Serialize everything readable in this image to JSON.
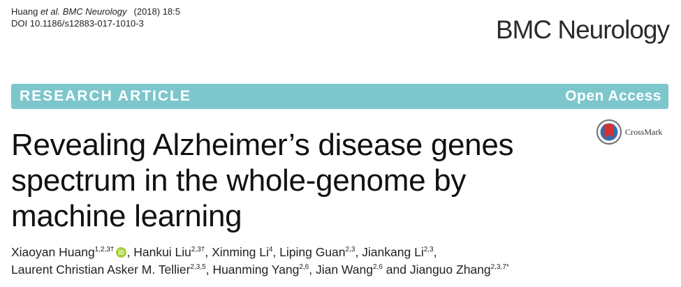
{
  "citation": {
    "author": "Huang",
    "et_al": "et al.",
    "journal": "BMC Neurology",
    "year": "(2018) 18:5",
    "doi": "DOI 10.1186/s12883-017-1010-3"
  },
  "journal_name": "BMC Neurology",
  "banner": {
    "type": "RESEARCH ARTICLE",
    "access": "Open Access"
  },
  "crossmark": {
    "label": "CrossMark"
  },
  "title_lines": [
    "Revealing Alzheimer’s disease genes",
    "spectrum in the whole-genome by",
    "machine learning"
  ],
  "authors": [
    {
      "name": "Xiaoyan Huang",
      "sup": "1,2,3†",
      "orcid": true,
      "sep": ", "
    },
    {
      "name": "Hankui Liu",
      "sup": "2,3†",
      "sep": ", "
    },
    {
      "name": "Xinming Li",
      "sup": "4",
      "sep": ", "
    },
    {
      "name": "Liping Guan",
      "sup": "2,3",
      "sep": ", "
    },
    {
      "name": "Jiankang Li",
      "sup": "2,3",
      "sep": ","
    },
    {
      "name": "Laurent Christian Asker M. Tellier",
      "sup": "2,3,5",
      "sep": ", "
    },
    {
      "name": "Huanming Yang",
      "sup": "2,6",
      "sep": ", "
    },
    {
      "name": "Jian Wang",
      "sup": "2,6",
      "sep": " and "
    },
    {
      "name": "Jianguo Zhang",
      "sup": "2,3,7*",
      "sep": ""
    }
  ],
  "colors": {
    "banner_bg": "#7cc6cc",
    "orcid_green": "#a6ce39",
    "crossmark_red": "#d5322f"
  }
}
